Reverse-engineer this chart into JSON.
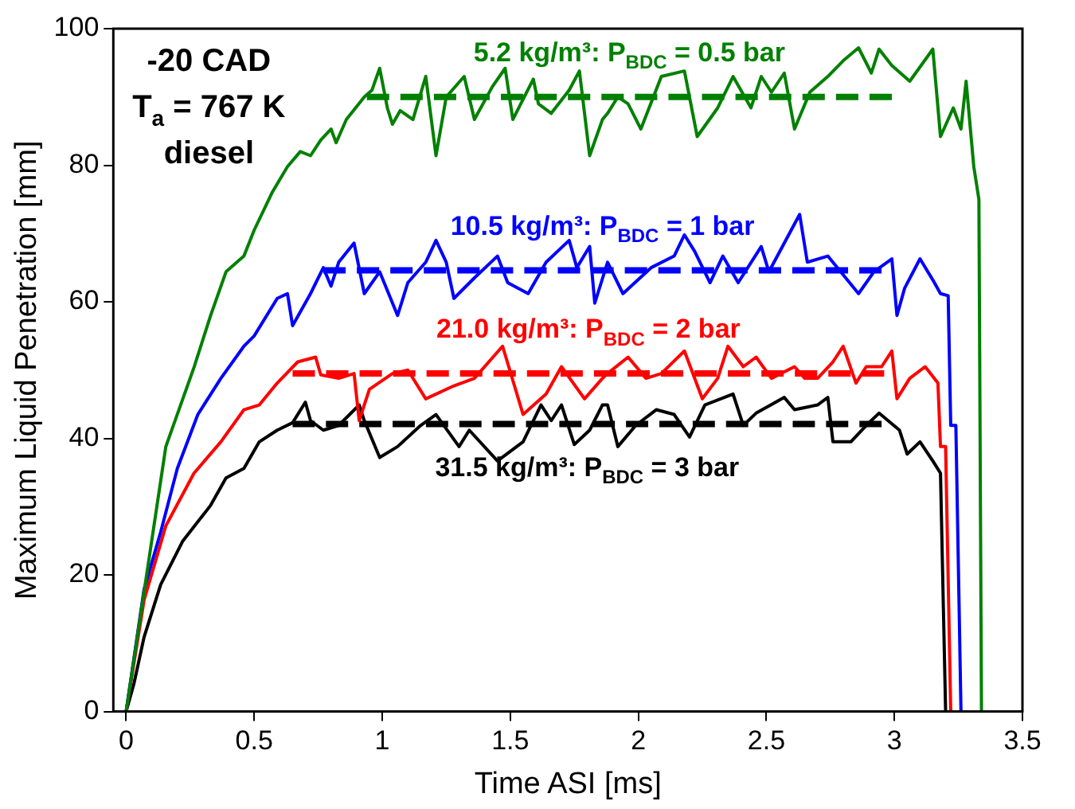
{
  "chart_data": {
    "type": "line",
    "xlabel": "Time ASI [ms]",
    "ylabel": "Maximum Liquid Penetration [mm]",
    "xlim": [
      -0.05,
      3.5
    ],
    "xticks": [
      0,
      0.5,
      1,
      1.5,
      2,
      2.5,
      3,
      3.5
    ],
    "ylim": [
      0,
      100
    ],
    "yticks": [
      0,
      20,
      40,
      60,
      80,
      100
    ],
    "grid": false,
    "legend": false,
    "series": [
      {
        "color": "#008000",
        "line_style": "solid",
        "x": [
          0,
          0.155,
          0.265,
          0.33,
          0.39,
          0.46,
          0.5,
          0.57,
          0.63,
          0.68,
          0.72,
          0.76,
          0.8,
          0.82,
          0.86,
          0.93,
          0.96,
          0.99,
          1.02,
          1.04,
          1.07,
          1.12,
          1.17,
          1.21,
          1.25,
          1.32,
          1.36,
          1.43,
          1.48,
          1.51,
          1.59,
          1.61,
          1.66,
          1.73,
          1.77,
          1.81,
          1.86,
          1.88,
          1.92,
          1.96,
          2.01,
          2.09,
          2.18,
          2.23,
          2.31,
          2.37,
          2.44,
          2.48,
          2.52,
          2.57,
          2.61,
          2.67,
          2.74,
          2.8,
          2.86,
          2.91,
          2.94,
          2.99,
          3.06,
          3.15,
          3.18,
          3.23,
          3.26,
          3.28,
          3.31,
          3.33,
          3.34
        ],
        "values": [
          0,
          38.8,
          50.4,
          58,
          64.4,
          66.7,
          70.5,
          76,
          79.8,
          82,
          81.4,
          83.7,
          85.3,
          83.3,
          86.7,
          90,
          91,
          94.2,
          88.4,
          86,
          88,
          86.7,
          93,
          81.4,
          90,
          93,
          86.7,
          91.5,
          94.2,
          86.7,
          92.6,
          89,
          87.6,
          91,
          93.8,
          81.4,
          86.7,
          87.6,
          90,
          89,
          85.3,
          93,
          93.8,
          84.2,
          88.4,
          93,
          88.4,
          93,
          90.7,
          93.5,
          85.3,
          90.7,
          93,
          95.3,
          97.2,
          93.5,
          97,
          94.6,
          92.3,
          97,
          84.2,
          88.4,
          85.3,
          92.3,
          79.8,
          75,
          0
        ]
      },
      {
        "color": "#0000ff",
        "line_style": "solid",
        "x": [
          0,
          0.07,
          0.135,
          0.2,
          0.28,
          0.37,
          0.46,
          0.5,
          0.59,
          0.63,
          0.65,
          0.72,
          0.77,
          0.8,
          0.83,
          0.89,
          0.93,
          0.99,
          1.06,
          1.1,
          1.17,
          1.21,
          1.25,
          1.28,
          1.36,
          1.45,
          1.49,
          1.57,
          1.64,
          1.73,
          1.76,
          1.81,
          1.83,
          1.88,
          1.94,
          2.05,
          2.14,
          2.18,
          2.22,
          2.28,
          2.33,
          2.39,
          2.48,
          2.51,
          2.63,
          2.66,
          2.74,
          2.86,
          2.92,
          2.99,
          3.01,
          3.04,
          3.1,
          3.15,
          3.18,
          3.21,
          3.22,
          3.24,
          3.26
        ],
        "values": [
          0,
          17.9,
          26.3,
          35.6,
          43.5,
          48.8,
          53.5,
          55,
          60.5,
          61.2,
          56.5,
          61.2,
          65,
          62.3,
          65.8,
          68.6,
          61.2,
          64.4,
          58,
          62.8,
          65.8,
          69,
          65.8,
          60.5,
          63.5,
          66.7,
          62.8,
          61.2,
          65.8,
          69,
          65,
          68.1,
          59.8,
          65.8,
          61.2,
          65,
          66.7,
          69.8,
          67.4,
          62.8,
          66.7,
          62.8,
          68.1,
          64.4,
          72.8,
          65.8,
          66.7,
          61.2,
          64.4,
          66.3,
          58,
          62,
          66.3,
          63.2,
          61.2,
          60.9,
          41.9,
          41.9,
          0
        ]
      },
      {
        "color": "#ff0000",
        "line_style": "solid",
        "x": [
          0,
          0.03,
          0.07,
          0.155,
          0.265,
          0.37,
          0.46,
          0.52,
          0.59,
          0.67,
          0.74,
          0.76,
          0.83,
          0.89,
          0.91,
          0.95,
          1.04,
          1.1,
          1.17,
          1.28,
          1.36,
          1.47,
          1.55,
          1.64,
          1.7,
          1.79,
          1.86,
          1.88,
          1.96,
          2.03,
          2.09,
          2.18,
          2.25,
          2.31,
          2.35,
          2.41,
          2.46,
          2.52,
          2.61,
          2.65,
          2.7,
          2.76,
          2.8,
          2.85,
          2.89,
          2.95,
          2.99,
          3.01,
          3.06,
          3.12,
          3.17,
          3.18,
          3.2,
          3.22
        ],
        "values": [
          0,
          7,
          16.3,
          27.2,
          34.9,
          39.5,
          44.2,
          44.9,
          48.1,
          51.2,
          51.9,
          49.3,
          48.8,
          49.5,
          42.6,
          47.2,
          49.5,
          50,
          45.8,
          47.7,
          48.8,
          53.5,
          43.5,
          46.5,
          50.5,
          45.8,
          48.8,
          49.5,
          51.9,
          48.8,
          49.5,
          52.8,
          45.8,
          48.8,
          53.5,
          50.5,
          51.9,
          48.8,
          50.5,
          48.8,
          48.8,
          51.2,
          53.5,
          48.1,
          50.5,
          50.5,
          52.8,
          45.8,
          48.8,
          50.5,
          48.1,
          38.8,
          38.8,
          0
        ]
      },
      {
        "color": "#000000",
        "line_style": "solid",
        "x": [
          0,
          0.03,
          0.07,
          0.135,
          0.22,
          0.33,
          0.39,
          0.46,
          0.52,
          0.59,
          0.65,
          0.7,
          0.72,
          0.77,
          0.83,
          0.91,
          0.93,
          0.99,
          1.06,
          1.15,
          1.21,
          1.3,
          1.34,
          1.45,
          1.55,
          1.62,
          1.66,
          1.7,
          1.75,
          1.81,
          1.86,
          1.88,
          1.92,
          1.99,
          2.07,
          2.14,
          2.2,
          2.26,
          2.37,
          2.41,
          2.46,
          2.57,
          2.61,
          2.7,
          2.74,
          2.76,
          2.83,
          2.89,
          2.94,
          3.02,
          3.05,
          3.1,
          3.15,
          3.18,
          3.2
        ],
        "values": [
          0,
          4,
          10.9,
          18.6,
          24.9,
          30.2,
          34.2,
          35.6,
          39.5,
          41.2,
          42.3,
          45.3,
          42.6,
          41.2,
          41.9,
          44.9,
          42.6,
          37.2,
          38.8,
          41.9,
          43.5,
          38.8,
          41.2,
          36.7,
          39.5,
          44.9,
          42.6,
          44.9,
          39.1,
          41.2,
          44.9,
          44.9,
          38.8,
          41.9,
          44.2,
          43.5,
          40.2,
          44.9,
          46.5,
          41.9,
          43.7,
          46,
          44.2,
          44.9,
          46,
          39.5,
          39.5,
          41.9,
          43.7,
          41.2,
          37.7,
          39.5,
          36.7,
          34.9,
          0
        ]
      },
      {
        "name": "5.2 kg/m³: P$_{BDC}$ = 0.5 bar",
        "color": "#008000",
        "line_style": "dashed",
        "x": [
          0.94,
          2.99
        ],
        "values": [
          90,
          90
        ]
      },
      {
        "name": "10.5 kg/m³: P$_{BDC}$ = 1 bar",
        "color": "#0000ff",
        "line_style": "dashed",
        "x": [
          0.77,
          2.95
        ],
        "values": [
          64.6,
          64.6
        ]
      },
      {
        "name": "21.0 kg/m³: P$_{BDC}$ = 2 bar",
        "color": "#ff0000",
        "line_style": "dashed",
        "x": [
          0.65,
          2.96
        ],
        "values": [
          49.5,
          49.5
        ]
      },
      {
        "name": "31.5 kg/m³: P$_{BDC}$ = 3 bar",
        "color": "#000000",
        "line_style": "dashed",
        "x": [
          0.65,
          2.95
        ],
        "values": [
          42.1,
          42.1
        ]
      }
    ],
    "annotations": [
      "-20 CAD",
      "T$_{a}$ = 767 K",
      "diesel"
    ]
  }
}
